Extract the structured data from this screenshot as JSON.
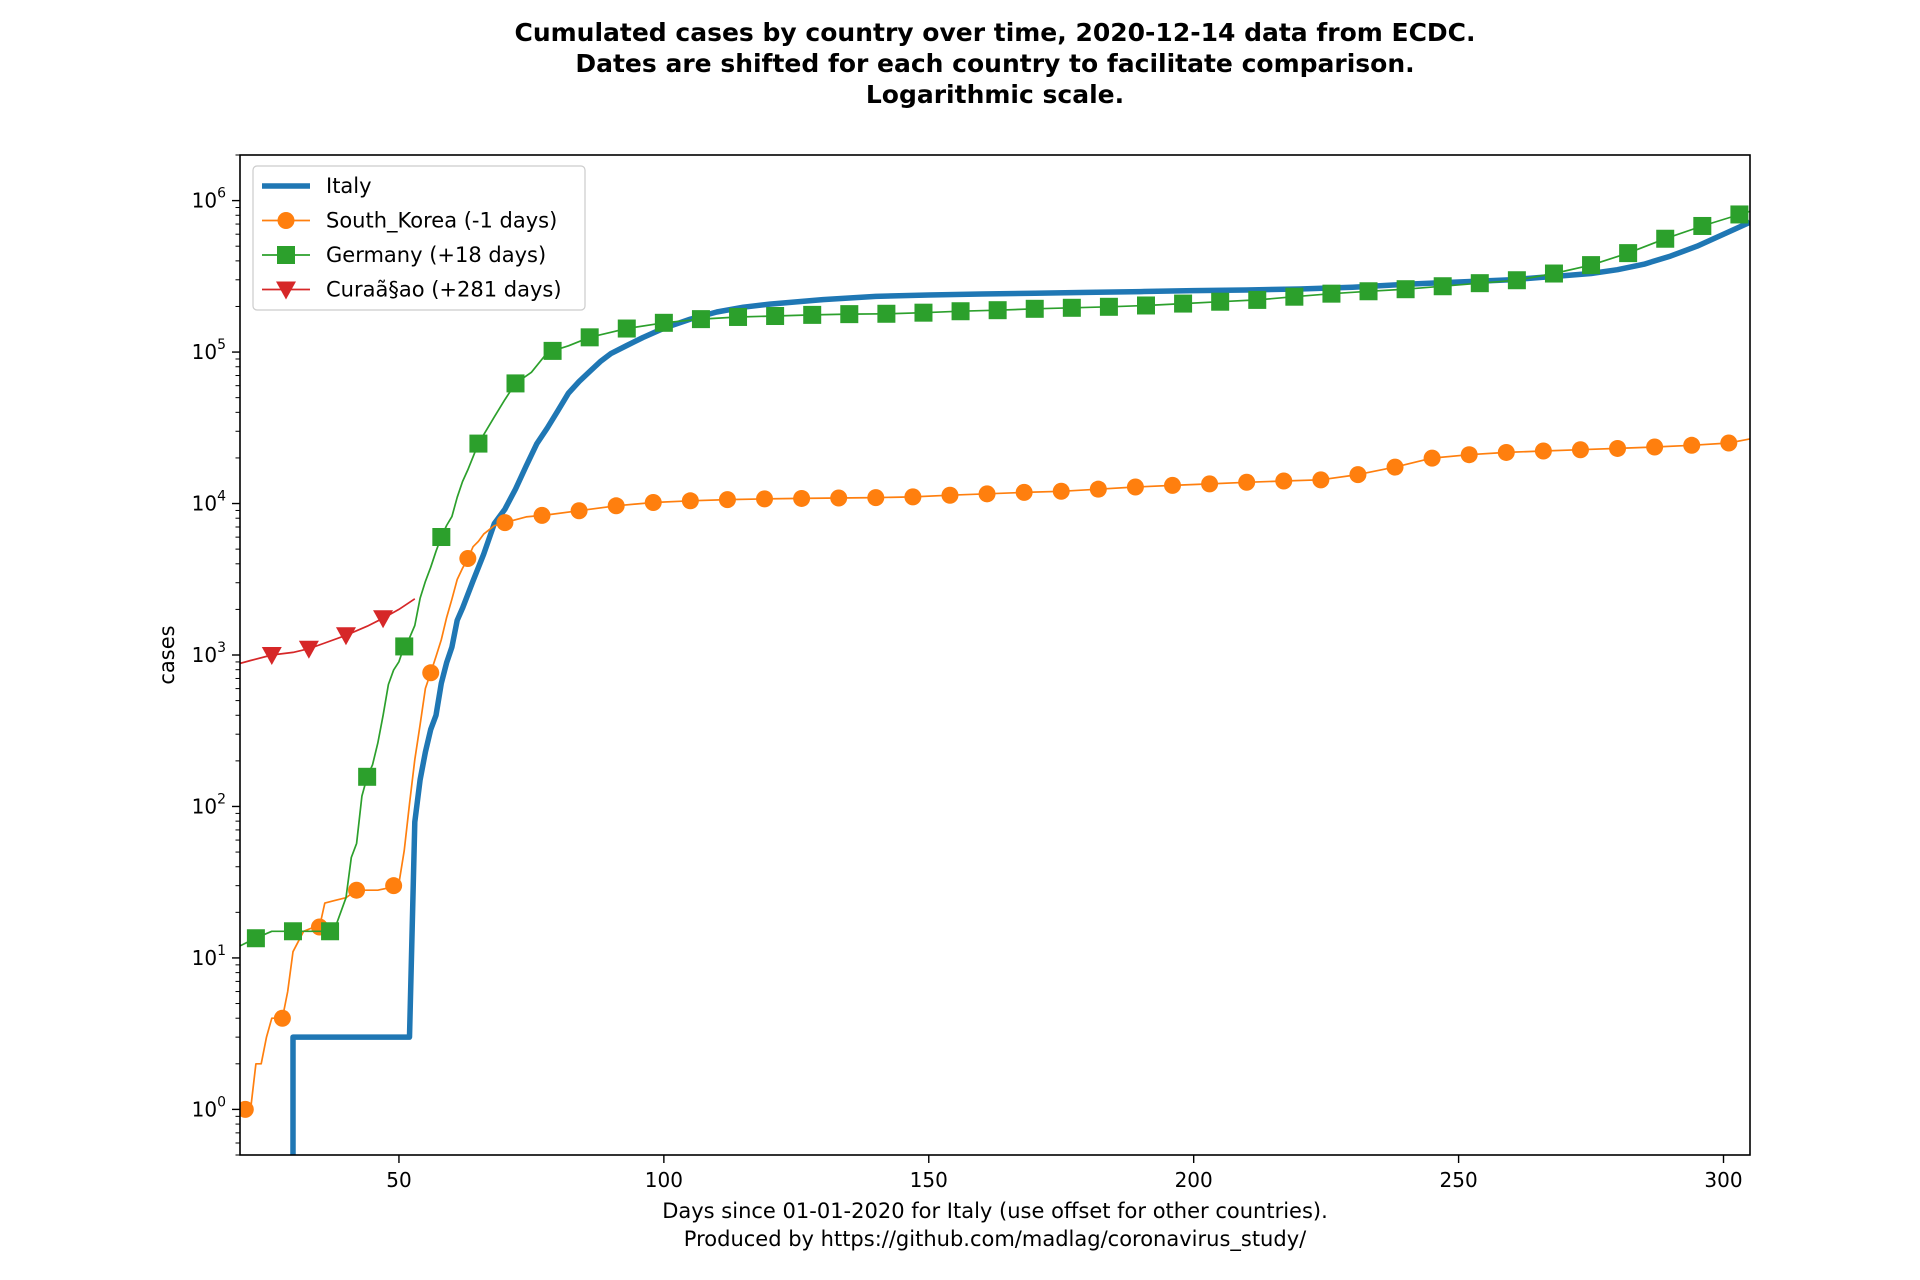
{
  "chart_data": {
    "type": "line",
    "title": [
      "Cumulated cases by country over time, 2020-12-14 data from ECDC.",
      "Dates are shifted for each country to facilitate comparison.",
      "Logarithmic scale."
    ],
    "xlabel": [
      "Days since 01-01-2020 for Italy (use offset for other countries).",
      "Produced by https://github.com/madlag/coronavirus_study/"
    ],
    "ylabel": "cases",
    "y_scale": "log",
    "xlim": [
      20,
      305
    ],
    "ylim": [
      0.5,
      2000000
    ],
    "x_ticks": [
      50,
      100,
      150,
      200,
      250,
      300
    ],
    "x_tick_labels": [
      "50",
      "100",
      "150",
      "200",
      "250",
      "300"
    ],
    "y_ticks": [
      1,
      10,
      100,
      1000,
      10000,
      100000,
      1000000
    ],
    "y_tick_labels": [
      {
        "base": "10",
        "exp": "0"
      },
      {
        "base": "10",
        "exp": "1"
      },
      {
        "base": "10",
        "exp": "2"
      },
      {
        "base": "10",
        "exp": "3"
      },
      {
        "base": "10",
        "exp": "4"
      },
      {
        "base": "10",
        "exp": "5"
      },
      {
        "base": "10",
        "exp": "6"
      }
    ],
    "grid": false,
    "legend_position": "top-left",
    "series": [
      {
        "name": "Italy",
        "color": "#1f77b4",
        "marker": "none",
        "x": [
          30,
          30,
          31,
          35,
          40,
          45,
          50,
          51,
          52,
          53,
          54,
          55,
          56,
          57,
          58,
          59,
          60,
          61,
          62,
          64,
          66,
          68,
          70,
          72,
          74,
          76,
          78,
          80,
          82,
          84,
          86,
          88,
          90,
          93,
          96,
          100,
          105,
          110,
          115,
          120,
          130,
          140,
          150,
          160,
          170,
          180,
          190,
          200,
          210,
          220,
          230,
          240,
          250,
          260,
          265,
          270,
          275,
          280,
          285,
          290,
          295,
          300,
          305
        ],
        "y": [
          0.5,
          3,
          3,
          3,
          3,
          3,
          3,
          3,
          3,
          79,
          150,
          229,
          322,
          400,
          650,
          888,
          1128,
          1694,
          2036,
          3089,
          4636,
          7375,
          9172,
          12462,
          17660,
          24747,
          31506,
          41035,
          53578,
          63927,
          74386,
          86498,
          97689,
          110574,
          124632,
          143626,
          165155,
          183957,
          197675,
          207428,
          222104,
          232997,
          238011,
          241819,
          244752,
          247537,
          250566,
          254636,
          257000,
          261000,
          268000,
          280000,
          290000,
          300000,
          310000,
          320000,
          330000,
          350000,
          380000,
          430000,
          500000,
          600000,
          720000
        ]
      },
      {
        "name": "South_Korea (-1 days)",
        "color": "#ff7f0e",
        "marker": "circle",
        "x": [
          20,
          21,
          22,
          23,
          24,
          25,
          26,
          27,
          28,
          29,
          30,
          32,
          34,
          35,
          36,
          38,
          40,
          42,
          44,
          46,
          48,
          49,
          50,
          51,
          52,
          53,
          54,
          55,
          56,
          57,
          58,
          59,
          60,
          61,
          62,
          63,
          64,
          65,
          66,
          68,
          70,
          74,
          78,
          84,
          91,
          98,
          105,
          112,
          119,
          126,
          133,
          140,
          147,
          154,
          161,
          168,
          175,
          182,
          189,
          196,
          203,
          210,
          217,
          224,
          231,
          238,
          245,
          252,
          259,
          266,
          273,
          280,
          287,
          294,
          301,
          305
        ],
        "y": [
          1,
          1,
          1,
          2,
          2,
          3,
          4,
          4,
          4,
          6,
          11,
          15,
          16,
          16,
          23,
          24,
          25,
          28,
          28,
          28,
          29,
          30,
          31,
          51,
          104,
          204,
          346,
          602,
          763,
          977,
          1261,
          1766,
          2337,
          3150,
          3736,
          4335,
          5186,
          5621,
          6284,
          7134,
          7478,
          8162,
          8413,
          8961,
          9661,
          10156,
          10423,
          10613,
          10728,
          10804,
          10874,
          10936,
          11065,
          11344,
          11590,
          11852,
          12051,
          12438,
          12850,
          13181,
          13479,
          13816,
          14092,
          14336,
          15515,
          17399,
          19947,
          21010,
          21743,
          22213,
          22657,
          23106,
          23611,
          24239,
          25100,
          26700
        ]
      },
      {
        "name": "Germany (+18 days)",
        "color": "#2ca02c",
        "marker": "square",
        "x": [
          20,
          22,
          24,
          26,
          28,
          30,
          32,
          34,
          36,
          37,
          38,
          40,
          41,
          42,
          43,
          44,
          45,
          46,
          47,
          48,
          49,
          50,
          51,
          52,
          53,
          54,
          55,
          56,
          57,
          58,
          59,
          60,
          61,
          62,
          63,
          65,
          68,
          70,
          72,
          75,
          78,
          82,
          86,
          90,
          93,
          100,
          107,
          114,
          121,
          128,
          135,
          142,
          149,
          156,
          163,
          170,
          177,
          184,
          191,
          198,
          205,
          212,
          219,
          226,
          233,
          240,
          247,
          254,
          261,
          268,
          275,
          282,
          289,
          296,
          303,
          305
        ],
        "y": [
          12,
          13,
          14,
          15,
          15,
          15,
          15,
          15,
          15,
          15,
          16,
          25,
          46,
          57,
          117,
          157,
          188,
          262,
          400,
          639,
          795,
          902,
          1139,
          1296,
          1567,
          2369,
          3062,
          3795,
          4838,
          6012,
          7156,
          8198,
          10999,
          13957,
          16662,
          24873,
          37323,
          48582,
          62095,
          73522,
          99225,
          110000,
          125098,
          135000,
          143000,
          156000,
          165000,
          170500,
          173000,
          176000,
          178000,
          179000,
          182000,
          186000,
          189000,
          193000,
          196000,
          199000,
          203000,
          209000,
          215000,
          221000,
          232000,
          243000,
          252000,
          260000,
          272000,
          285000,
          298000,
          330000,
          375000,
          450000,
          560000,
          680000,
          810000,
          850000
        ]
      },
      {
        "name": "Curaã§ao (+281 days)",
        "color": "#d62728",
        "marker": "triangle-down",
        "x": [
          20,
          22,
          26,
          30,
          33,
          36,
          40,
          44,
          47,
          50,
          53
        ],
        "y": [
          880,
          920,
          1000,
          1040,
          1100,
          1200,
          1350,
          1550,
          1750,
          2000,
          2350
        ]
      }
    ]
  }
}
